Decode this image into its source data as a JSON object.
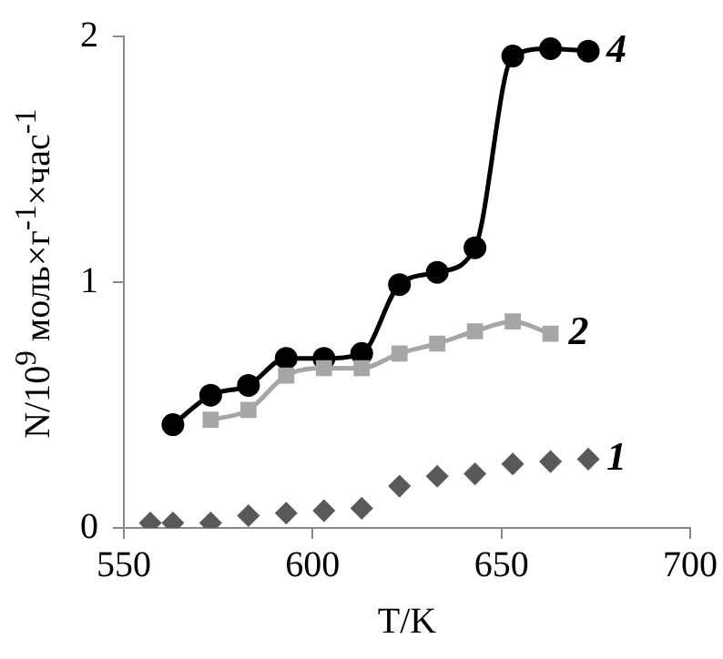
{
  "chart_data": {
    "type": "line",
    "xlabel": "T/K",
    "ylabel": "N/10$^{9}$ моль×г$^{-1}$×час$^{-1}$",
    "xlim": [
      550,
      700
    ],
    "xticks": [
      550,
      600,
      650,
      700
    ],
    "ylim": [
      0,
      2
    ],
    "yticks": [
      0,
      1,
      2
    ],
    "grid": false,
    "legend": false,
    "series": [
      {
        "name": "1",
        "type": "scatter",
        "marker": "diamond",
        "color": "#595959",
        "x": [
          557,
          563,
          573,
          583,
          593,
          603,
          613,
          623,
          633,
          643,
          653,
          663,
          673
        ],
        "values": [
          0.02,
          0.02,
          0.02,
          0.05,
          0.06,
          0.07,
          0.08,
          0.17,
          0.21,
          0.22,
          0.26,
          0.27,
          0.28
        ]
      },
      {
        "name": "2",
        "type": "line",
        "marker": "square",
        "color": "#a6a6a6",
        "x": [
          573,
          583,
          593,
          603,
          613,
          623,
          633,
          643,
          653,
          663
        ],
        "values": [
          0.44,
          0.48,
          0.62,
          0.65,
          0.65,
          0.71,
          0.75,
          0.8,
          0.84,
          0.79
        ]
      },
      {
        "name": "4",
        "type": "line",
        "marker": "circle",
        "color": "#000000",
        "x": [
          563,
          573,
          583,
          593,
          603,
          613,
          623,
          633,
          643,
          653,
          663,
          673
        ],
        "values": [
          0.42,
          0.54,
          0.58,
          0.69,
          0.69,
          0.71,
          0.99,
          1.04,
          1.14,
          1.92,
          1.95,
          1.94
        ]
      }
    ]
  }
}
